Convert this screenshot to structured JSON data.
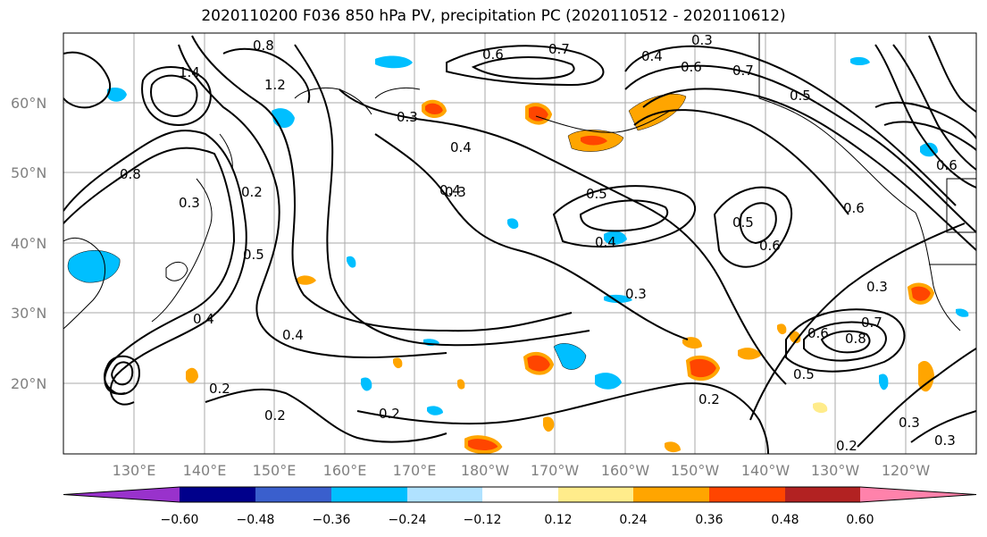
{
  "title": "2020110200 F036 850 hPa PV, precipitation PC (2020110512 - 2020110612)",
  "lat_labels": [
    "60°N",
    "50°N",
    "40°N",
    "30°N",
    "20°N"
  ],
  "lon_labels": [
    "130°E",
    "140°E",
    "150°E",
    "160°E",
    "170°E",
    "180°W",
    "170°W",
    "160°W",
    "150°W",
    "140°W",
    "130°W",
    "120°W"
  ],
  "contour_labels": [
    {
      "text": "0.8"
    },
    {
      "text": "1.4"
    },
    {
      "text": "1.2"
    },
    {
      "text": "0.6"
    },
    {
      "text": "0.7"
    },
    {
      "text": "0.3"
    },
    {
      "text": "0.4"
    },
    {
      "text": "0.3"
    },
    {
      "text": "0.4"
    },
    {
      "text": "0.6"
    },
    {
      "text": "0.7"
    },
    {
      "text": "0.5"
    },
    {
      "text": "0.8"
    },
    {
      "text": "0.2"
    },
    {
      "text": "0.3"
    },
    {
      "text": "0.5"
    },
    {
      "text": "0.4"
    },
    {
      "text": "0.3"
    },
    {
      "text": "0.4"
    },
    {
      "text": "0.5"
    },
    {
      "text": "0.4"
    },
    {
      "text": "0.3"
    },
    {
      "text": "0.5"
    },
    {
      "text": "0.6"
    },
    {
      "text": "0.6"
    },
    {
      "text": "0.3"
    },
    {
      "text": "0.6"
    },
    {
      "text": "0.8"
    },
    {
      "text": "0.7"
    },
    {
      "text": "0.5"
    },
    {
      "text": "0.4"
    },
    {
      "text": "0.2"
    },
    {
      "text": "0.2"
    },
    {
      "text": "0.2"
    },
    {
      "text": "0.2"
    },
    {
      "text": "0.3"
    },
    {
      "text": "0.2"
    },
    {
      "text": "0.3"
    },
    {
      "text": "0.6"
    }
  ],
  "colorbar": {
    "colors": [
      "#9932cc",
      "#00008b",
      "#3a5fcd",
      "#00bfff",
      "#b0e2ff",
      "#ffffff",
      "#ffec8b",
      "#ffa500",
      "#ff4500",
      "#b22222",
      "#ff82ab"
    ],
    "ticks": [
      "−0.60",
      "−0.48",
      "−0.36",
      "−0.24",
      "−0.12",
      "0.12",
      "0.24",
      "0.36",
      "0.48",
      "0.60"
    ]
  },
  "shading_colors": {
    "blue": "#00bfff",
    "light_blue": "#b0e2ff",
    "yellow": "#ffec8b",
    "orange": "#ffa500",
    "red": "#ff4500"
  }
}
